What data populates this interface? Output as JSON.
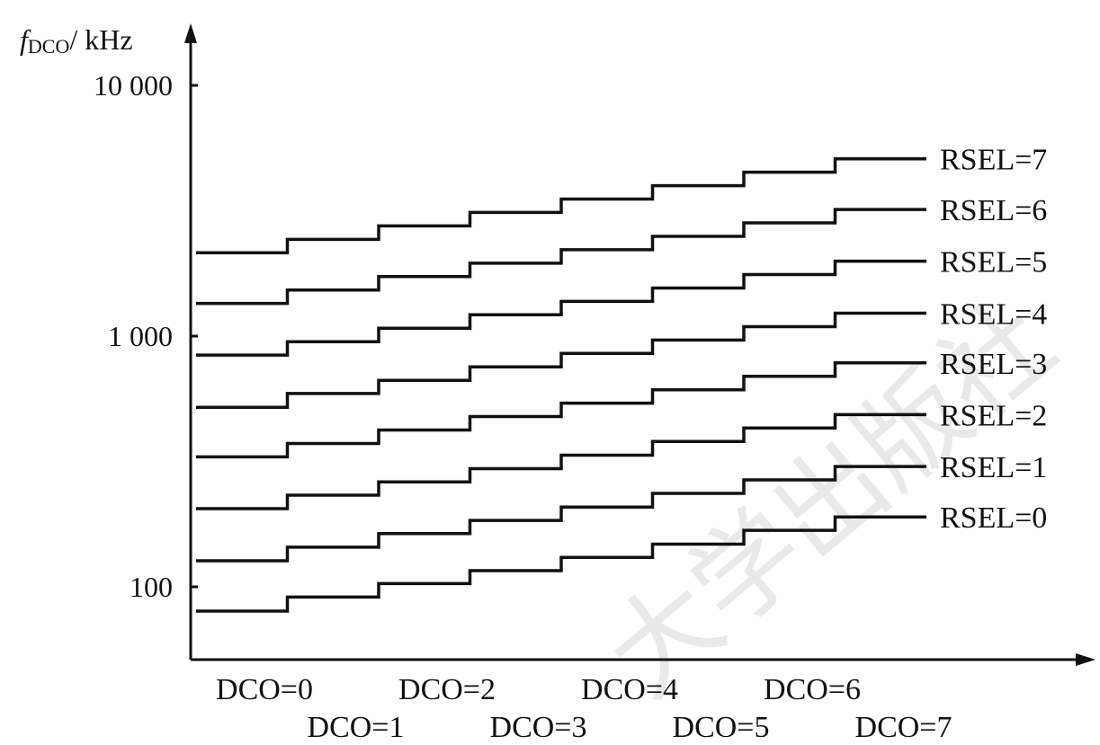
{
  "chart_data": {
    "type": "line",
    "step": true,
    "ylabel_var": "f",
    "ylabel_sub": "DCO",
    "ylabel_unit": "/ kHz",
    "xlabel": "",
    "yscale": "log",
    "ylim": [
      60,
      10000
    ],
    "yticks": [
      {
        "value": 10000,
        "label": "10 000"
      },
      {
        "value": 1000,
        "label": "1 000"
      },
      {
        "value": 100,
        "label": "100"
      }
    ],
    "categories": [
      "DCO=0",
      "DCO=1",
      "DCO=2",
      "DCO=3",
      "DCO=4",
      "DCO=5",
      "DCO=6",
      "DCO=7"
    ],
    "grid": false,
    "series": [
      {
        "name": "RSEL=0",
        "values": [
          80,
          91,
          103,
          116,
          131,
          148,
          168,
          190
        ]
      },
      {
        "name": "RSEL=1",
        "values": [
          127,
          144,
          163,
          184,
          208,
          236,
          267,
          302
        ]
      },
      {
        "name": "RSEL=2",
        "values": [
          205,
          232,
          262,
          296,
          335,
          380,
          430,
          486
        ]
      },
      {
        "name": "RSEL=3",
        "values": [
          330,
          373,
          422,
          478,
          540,
          611,
          691,
          782
        ]
      },
      {
        "name": "RSEL=4",
        "values": [
          520,
          590,
          666,
          754,
          853,
          965,
          1090,
          1234
        ]
      },
      {
        "name": "RSEL=5",
        "values": [
          840,
          950,
          1075,
          1216,
          1375,
          1555,
          1760,
          1990
        ]
      },
      {
        "name": "RSEL=6",
        "values": [
          1350,
          1527,
          1727,
          1954,
          2210,
          2500,
          2828,
          3200
        ]
      },
      {
        "name": "RSEL=7",
        "values": [
          2150,
          2432,
          2752,
          3113,
          3520,
          3982,
          4505,
          5095
        ]
      }
    ]
  },
  "watermark": "大学出版社"
}
